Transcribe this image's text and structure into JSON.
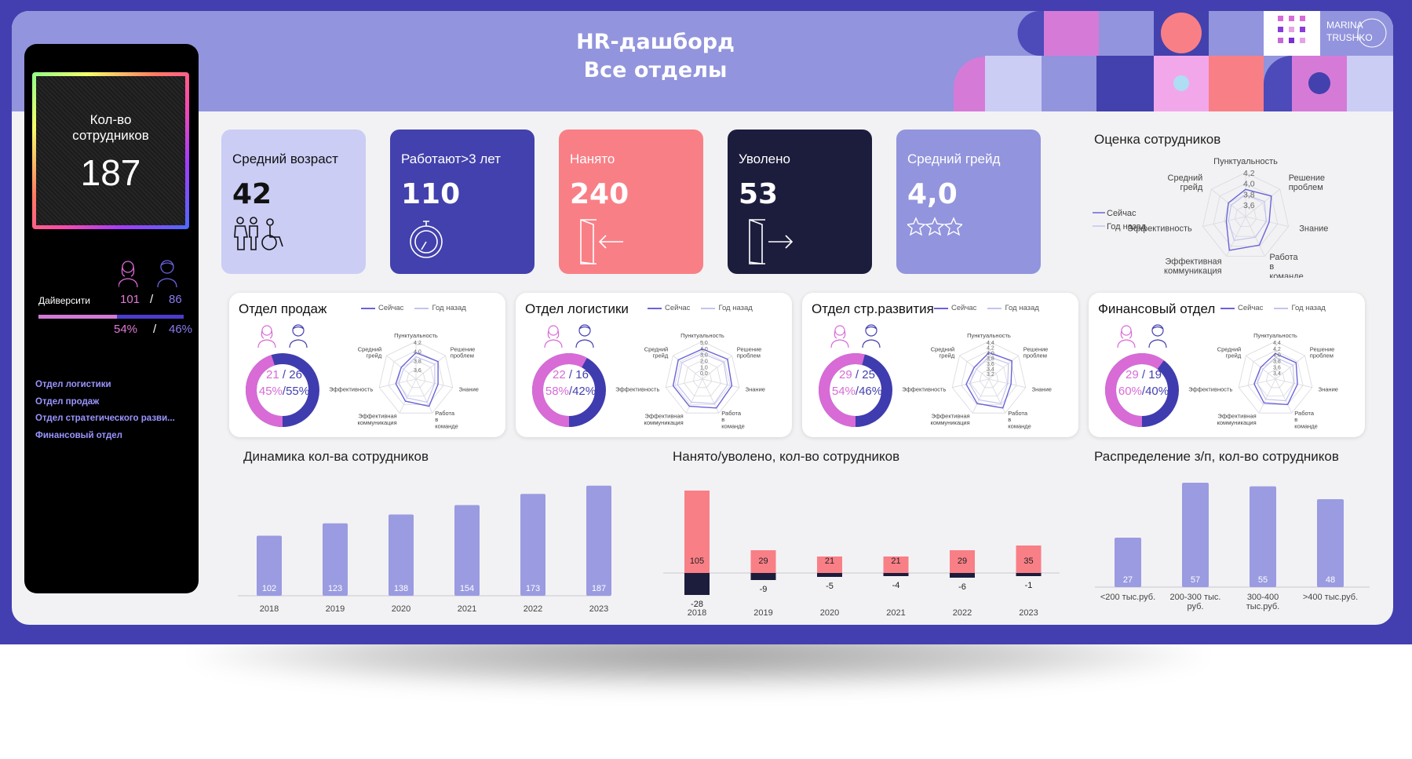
{
  "header": {
    "title_line1": "HR-дашборд",
    "title_line2": "Все отделы",
    "logo_line1": "MARINA",
    "logo_line2": "TRUSHKO"
  },
  "sidebar": {
    "headcount_label": "Кол-во сотрудников",
    "headcount_value": "187",
    "diversity_label": "Дайверсити",
    "female_count": "101",
    "male_count": "86",
    "separator": "/",
    "female_pct": "54%",
    "male_pct": "46%",
    "female_share": 0.54,
    "filters": [
      "Отдел логистики",
      "Отдел продаж",
      "Отдел стратегического разви...",
      "Финансовый отдел"
    ]
  },
  "kpis": [
    {
      "label": "Средний возраст",
      "value": "42",
      "icon": "people-icon",
      "bg": "#cbcdf5",
      "fg": "#111111"
    },
    {
      "label": "Работают>3 лет",
      "value": "110",
      "icon": "stopwatch-icon",
      "bg": "#4241ad",
      "fg": "#ffffff"
    },
    {
      "label": "Нанято",
      "value": "240",
      "icon": "enter-door-icon",
      "bg": "#f97f86",
      "fg": "#ffffff"
    },
    {
      "label": "Уволено",
      "value": "53",
      "icon": "exit-door-icon",
      "bg": "#1c1d3d",
      "fg": "#ffffff"
    },
    {
      "label": "Средний грейд",
      "value": "4,0",
      "icon": "stars-icon",
      "bg": "#9294dd",
      "fg": "#ffffff"
    }
  ],
  "evaluation": {
    "title": "Оценка сотрудников",
    "legend_now": "Сейчас",
    "legend_prev": "Год назад",
    "axes": [
      "Пунктуальность",
      "Решение проблем",
      "Знание",
      "Работа в команде",
      "Эффективная коммуникация",
      "Эффективность",
      "Средний грейд"
    ],
    "ticks": [
      "4,2",
      "4,0",
      "3,8",
      "3,6"
    ]
  },
  "departments": [
    {
      "name": "Отдел продаж",
      "female": "21",
      "male": "26",
      "female_pct": "45%",
      "male_pct": "55%",
      "female_share": 0.45,
      "ticks": [
        "4,2",
        "4,0",
        "3,8",
        "3,6"
      ]
    },
    {
      "name": "Отдел логистики",
      "female": "22",
      "male": "16",
      "female_pct": "58%",
      "male_pct": "42%",
      "female_share": 0.58,
      "ticks": [
        "5,0",
        "4,0",
        "3,0",
        "2,0",
        "1,0",
        "0,0"
      ]
    },
    {
      "name": "Отдел стр.развития",
      "female": "29",
      "male": "25",
      "female_pct": "54%",
      "male_pct": "46%",
      "female_share": 0.54,
      "ticks": [
        "4,4",
        "4,2",
        "4,0",
        "3,8",
        "3,6",
        "3,4",
        "3,2"
      ]
    },
    {
      "name": "Финансовый отдел",
      "female": "29",
      "male": "19",
      "female_pct": "60%",
      "male_pct": "40%",
      "female_share": 0.6,
      "ticks": [
        "4,4",
        "4,2",
        "4,0",
        "3,8",
        "3,6",
        "3,4"
      ]
    }
  ],
  "dept_legend": {
    "now": "Сейчас",
    "prev": "Год назад"
  },
  "radar_axes_small": [
    "Пунктуальность",
    "Решение проблем",
    "Знание",
    "Работа в команде",
    "Эффективная коммуникация",
    "Эффективность",
    "Средний грейд"
  ],
  "sections": {
    "dynamics": "Динамика кол-ва сотрудников",
    "hired_fired": "Нанято/уволено, кол-во сотрудников",
    "salary": "Распределение з/п, кол-во сотрудников"
  },
  "chart_data": [
    {
      "type": "bar",
      "categories": [
        "2018",
        "2019",
        "2020",
        "2021",
        "2022",
        "2023"
      ],
      "values": [
        102,
        123,
        138,
        154,
        173,
        187
      ],
      "color": "#9a9be0"
    },
    {
      "type": "bar",
      "categories": [
        "2018",
        "2019",
        "2020",
        "2021",
        "2022",
        "2023"
      ],
      "series": [
        {
          "values": [
            105,
            29,
            21,
            21,
            29,
            35
          ],
          "color": "#f97f86"
        },
        {
          "values": [
            -28,
            -9,
            -5,
            -4,
            -6,
            -1
          ],
          "color": "#1c1d3d"
        }
      ]
    },
    {
      "type": "bar",
      "categories": [
        "<200 тыс.руб.",
        "200-300 тыс. руб.",
        "300-400 тыс.руб.",
        ">400 тыс.руб."
      ],
      "values": [
        27,
        57,
        55,
        48
      ],
      "color": "#9a9be0"
    }
  ],
  "colors": {
    "frame": "#433fb0",
    "header": "#9294dd",
    "female": "#d86bd6",
    "male": "#4440b0"
  }
}
